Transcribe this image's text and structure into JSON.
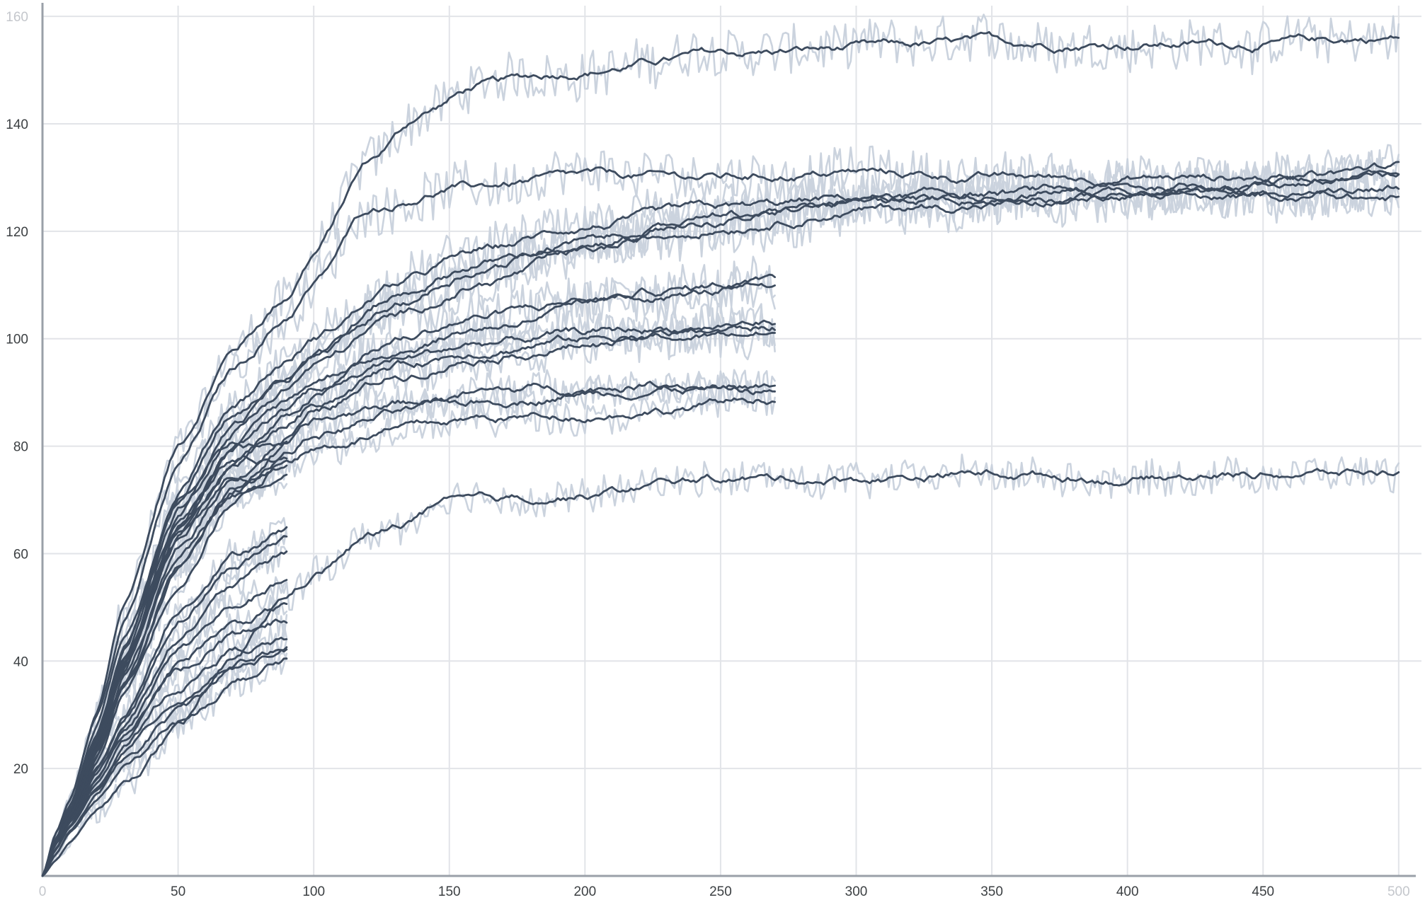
{
  "chart_data": {
    "type": "line",
    "title": "",
    "xlabel": "",
    "ylabel": "",
    "xlim": [
      0,
      505
    ],
    "ylim": [
      0,
      162
    ],
    "x_ticks": [
      {
        "value": 0,
        "label": "0",
        "faint": true
      },
      {
        "value": 50,
        "label": "50"
      },
      {
        "value": 100,
        "label": "100"
      },
      {
        "value": 150,
        "label": "150"
      },
      {
        "value": 200,
        "label": "200"
      },
      {
        "value": 250,
        "label": "250"
      },
      {
        "value": 300,
        "label": "300"
      },
      {
        "value": 350,
        "label": "350"
      },
      {
        "value": 400,
        "label": "400"
      },
      {
        "value": 450,
        "label": "450"
      },
      {
        "value": 500,
        "label": "500",
        "faint": true
      }
    ],
    "y_ticks": [
      {
        "value": 20,
        "label": "20"
      },
      {
        "value": 40,
        "label": "40"
      },
      {
        "value": 60,
        "label": "60"
      },
      {
        "value": 80,
        "label": "80"
      },
      {
        "value": 100,
        "label": "100"
      },
      {
        "value": 120,
        "label": "120"
      },
      {
        "value": 140,
        "label": "140"
      },
      {
        "value": 160,
        "label": "160",
        "faint": true
      }
    ],
    "grid": true,
    "legend": "none",
    "colors": {
      "raw": "#cbd3de",
      "smoothed": "#3d4b5e",
      "grid": "#e2e4e8",
      "axis": "#9aa0a8"
    },
    "series": [
      {
        "x": [
          0,
          5,
          10,
          20,
          30,
          50,
          70,
          90,
          100,
          120,
          140,
          160,
          200,
          250,
          300,
          350,
          400,
          450,
          500
        ],
        "values": [
          0,
          8,
          14,
          30,
          50,
          80,
          98,
          108,
          116,
          133,
          142,
          147,
          150,
          153,
          154,
          155,
          155,
          155,
          156
        ]
      },
      {
        "x": [
          0,
          5,
          10,
          20,
          30,
          50,
          70,
          90,
          100,
          120,
          150,
          200,
          250,
          300,
          350,
          400,
          450,
          500
        ],
        "values": [
          0,
          8,
          14,
          30,
          48,
          76,
          94,
          104,
          110,
          124,
          128,
          130,
          130,
          131,
          130,
          130,
          130,
          131
        ]
      },
      {
        "x": [
          0,
          5,
          10,
          20,
          30,
          50,
          70,
          90,
          100,
          130,
          160,
          200,
          250,
          300,
          350,
          400,
          450,
          500
        ],
        "values": [
          0,
          7,
          13,
          28,
          44,
          72,
          88,
          96,
          100,
          110,
          116,
          121,
          124,
          126,
          127,
          128,
          129,
          130
        ]
      },
      {
        "x": [
          0,
          5,
          10,
          20,
          30,
          50,
          70,
          90,
          100,
          130,
          160,
          200,
          250,
          300,
          350,
          400,
          450,
          500
        ],
        "values": [
          0,
          7,
          13,
          27,
          43,
          70,
          86,
          94,
          98,
          108,
          114,
          118,
          122,
          125,
          127,
          128,
          129,
          132
        ]
      },
      {
        "x": [
          0,
          5,
          10,
          20,
          30,
          50,
          70,
          90,
          100,
          130,
          160,
          200,
          250,
          300,
          350,
          400,
          450,
          500
        ],
        "values": [
          0,
          7,
          12,
          26,
          42,
          68,
          84,
          92,
          96,
          106,
          113,
          118,
          123,
          125,
          126,
          127,
          127,
          126
        ]
      },
      {
        "x": [
          0,
          5,
          10,
          20,
          30,
          50,
          70,
          90,
          100,
          130,
          160,
          200,
          250,
          300,
          350,
          400,
          450,
          500
        ],
        "values": [
          0,
          7,
          12,
          26,
          41,
          67,
          83,
          91,
          95,
          104,
          110,
          116,
          121,
          124,
          125,
          126,
          126,
          129
        ]
      },
      {
        "x": [
          0,
          5,
          10,
          20,
          30,
          50,
          70,
          90,
          100,
          130,
          160,
          200,
          230,
          270
        ],
        "values": [
          0,
          7,
          12,
          25,
          40,
          66,
          80,
          88,
          92,
          100,
          104,
          107,
          109,
          111
        ]
      },
      {
        "x": [
          0,
          5,
          10,
          20,
          30,
          50,
          70,
          90,
          100,
          130,
          160,
          200,
          230,
          270
        ],
        "values": [
          0,
          7,
          12,
          25,
          40,
          65,
          79,
          87,
          91,
          98,
          102,
          106,
          108,
          110
        ]
      },
      {
        "x": [
          0,
          5,
          10,
          20,
          30,
          50,
          70,
          90,
          100,
          130,
          160,
          200,
          230,
          270
        ],
        "values": [
          0,
          7,
          12,
          24,
          39,
          63,
          77,
          85,
          89,
          96,
          99,
          101,
          102,
          103
        ]
      },
      {
        "x": [
          0,
          5,
          10,
          20,
          30,
          50,
          70,
          90,
          100,
          130,
          160,
          200,
          230,
          270
        ],
        "values": [
          0,
          6,
          11,
          24,
          38,
          62,
          76,
          84,
          88,
          95,
          98,
          100,
          101,
          102
        ]
      },
      {
        "x": [
          0,
          5,
          10,
          20,
          30,
          50,
          70,
          90,
          100,
          130,
          160,
          200,
          230,
          270
        ],
        "values": [
          0,
          6,
          11,
          23,
          37,
          60,
          74,
          82,
          86,
          93,
          97,
          99,
          100,
          101
        ]
      },
      {
        "x": [
          0,
          5,
          10,
          20,
          30,
          50,
          70,
          90,
          100,
          130,
          160,
          200,
          230,
          270
        ],
        "values": [
          0,
          6,
          11,
          22,
          36,
          58,
          72,
          80,
          84,
          88,
          90,
          91,
          92,
          91
        ]
      },
      {
        "x": [
          0,
          5,
          10,
          20,
          30,
          50,
          70,
          90,
          100,
          130,
          160,
          200,
          230,
          270
        ],
        "values": [
          0,
          6,
          10,
          22,
          35,
          57,
          71,
          79,
          82,
          86,
          88,
          90,
          91,
          90
        ]
      },
      {
        "x": [
          0,
          5,
          10,
          20,
          30,
          50,
          70,
          90,
          100,
          130,
          160,
          200,
          230,
          270
        ],
        "values": [
          0,
          6,
          10,
          21,
          34,
          55,
          70,
          78,
          80,
          83,
          85,
          86,
          87,
          89
        ]
      },
      {
        "x": [
          0,
          5,
          10,
          20,
          30,
          50,
          70,
          90
        ],
        "values": [
          0,
          6,
          12,
          26,
          42,
          70,
          80,
          80
        ]
      },
      {
        "x": [
          0,
          5,
          10,
          20,
          30,
          50,
          70,
          90
        ],
        "values": [
          0,
          6,
          11,
          25,
          40,
          67,
          78,
          78
        ]
      },
      {
        "x": [
          0,
          5,
          10,
          20,
          30,
          50,
          70,
          90
        ],
        "values": [
          0,
          6,
          11,
          24,
          38,
          64,
          74,
          76
        ]
      },
      {
        "x": [
          0,
          5,
          10,
          20,
          30,
          50,
          70,
          90
        ],
        "values": [
          0,
          6,
          11,
          23,
          36,
          60,
          70,
          74
        ]
      },
      {
        "x": [
          0,
          5,
          10,
          20,
          30,
          50,
          70,
          90
        ],
        "values": [
          0,
          5,
          10,
          20,
          30,
          50,
          60,
          65
        ]
      },
      {
        "x": [
          0,
          5,
          10,
          20,
          30,
          50,
          70,
          90
        ],
        "values": [
          0,
          5,
          10,
          20,
          29,
          48,
          58,
          63
        ]
      },
      {
        "x": [
          0,
          5,
          10,
          20,
          30,
          50,
          70,
          90
        ],
        "values": [
          0,
          5,
          10,
          19,
          28,
          45,
          54,
          60
        ]
      },
      {
        "x": [
          0,
          5,
          10,
          20,
          30,
          50,
          70,
          90
        ],
        "values": [
          0,
          5,
          10,
          18,
          27,
          42,
          50,
          55
        ]
      },
      {
        "x": [
          0,
          5,
          10,
          20,
          30,
          50,
          70,
          90
        ],
        "values": [
          0,
          5,
          9,
          18,
          26,
          40,
          47,
          50
        ]
      },
      {
        "x": [
          0,
          5,
          10,
          20,
          30,
          50,
          70,
          90
        ],
        "values": [
          0,
          5,
          9,
          17,
          25,
          38,
          45,
          48
        ]
      },
      {
        "x": [
          0,
          5,
          10,
          20,
          30,
          50,
          70,
          90
        ],
        "values": [
          0,
          5,
          9,
          17,
          24,
          35,
          42,
          44
        ]
      },
      {
        "x": [
          0,
          5,
          10,
          20,
          30,
          50,
          70,
          90
        ],
        "values": [
          0,
          5,
          9,
          16,
          23,
          33,
          40,
          43
        ]
      },
      {
        "x": [
          0,
          5,
          10,
          20,
          30,
          50,
          70,
          90
        ],
        "values": [
          0,
          4,
          8,
          15,
          21,
          30,
          38,
          42
        ]
      },
      {
        "x": [
          0,
          5,
          10,
          20,
          30,
          50,
          70,
          90
        ],
        "values": [
          0,
          4,
          8,
          14,
          20,
          28,
          36,
          40
        ]
      },
      {
        "x": [
          0,
          5,
          10,
          20,
          30,
          50,
          70,
          90,
          100,
          120,
          150,
          200,
          250,
          300,
          350,
          400,
          450,
          500
        ],
        "values": [
          0,
          3,
          6,
          12,
          17,
          27,
          40,
          52,
          56,
          63,
          69,
          71,
          74,
          74,
          75,
          74,
          75,
          75
        ]
      }
    ]
  }
}
